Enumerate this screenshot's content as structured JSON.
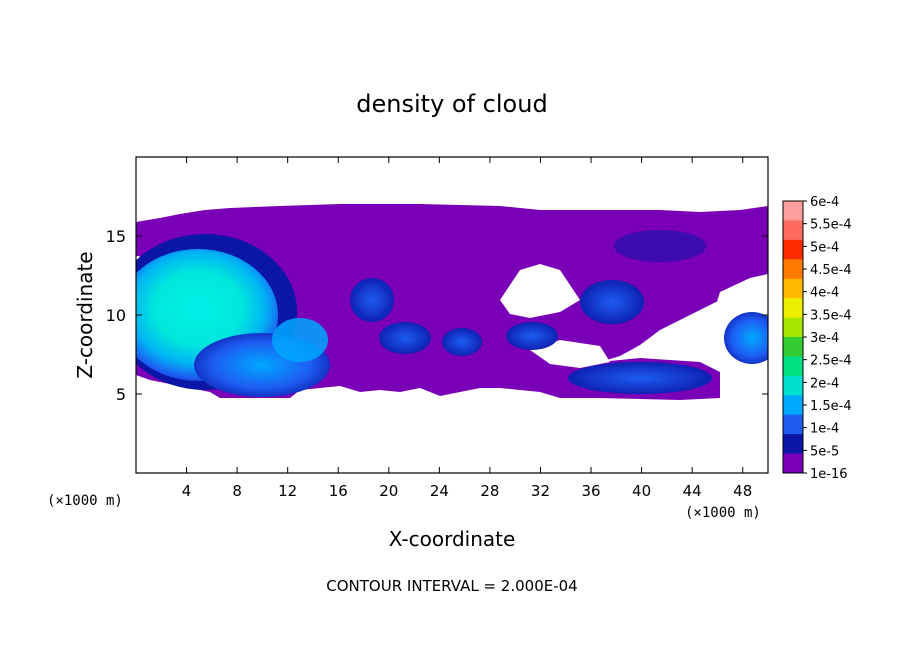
{
  "chart_data": {
    "type": "heatmap",
    "title": "density of cloud",
    "xlabel": "X-coordinate",
    "ylabel": "Z-coordinate",
    "x_unit": "(×1000 m)",
    "z_unit": "(×1000 m)",
    "xlim": [
      0,
      50
    ],
    "ylim": [
      0,
      20
    ],
    "x_ticks": [
      4,
      8,
      12,
      16,
      20,
      24,
      28,
      32,
      36,
      40,
      44,
      48
    ],
    "y_ticks": [
      5,
      10,
      15
    ],
    "footer": "CONTOUR INTERVAL = 2.000E-04",
    "colorbar": {
      "labels": [
        "6e-4",
        "5.5e-4",
        "5e-4",
        "4.5e-4",
        "4e-4",
        "3.5e-4",
        "3e-4",
        "2.5e-4",
        "2e-4",
        "1.5e-4",
        "1e-4",
        "5e-5",
        "1e-16"
      ],
      "colors": [
        "#ffa0a0",
        "#ff6b5e",
        "#ff2a00",
        "#ff7a00",
        "#ffbb00",
        "#eeee00",
        "#a8e800",
        "#33cc33",
        "#00e080",
        "#00e0d0",
        "#00a8ff",
        "#1e5cf2",
        "#0a16a6",
        "#7a00b8"
      ]
    },
    "grid": false,
    "legend": "colorbar right"
  }
}
